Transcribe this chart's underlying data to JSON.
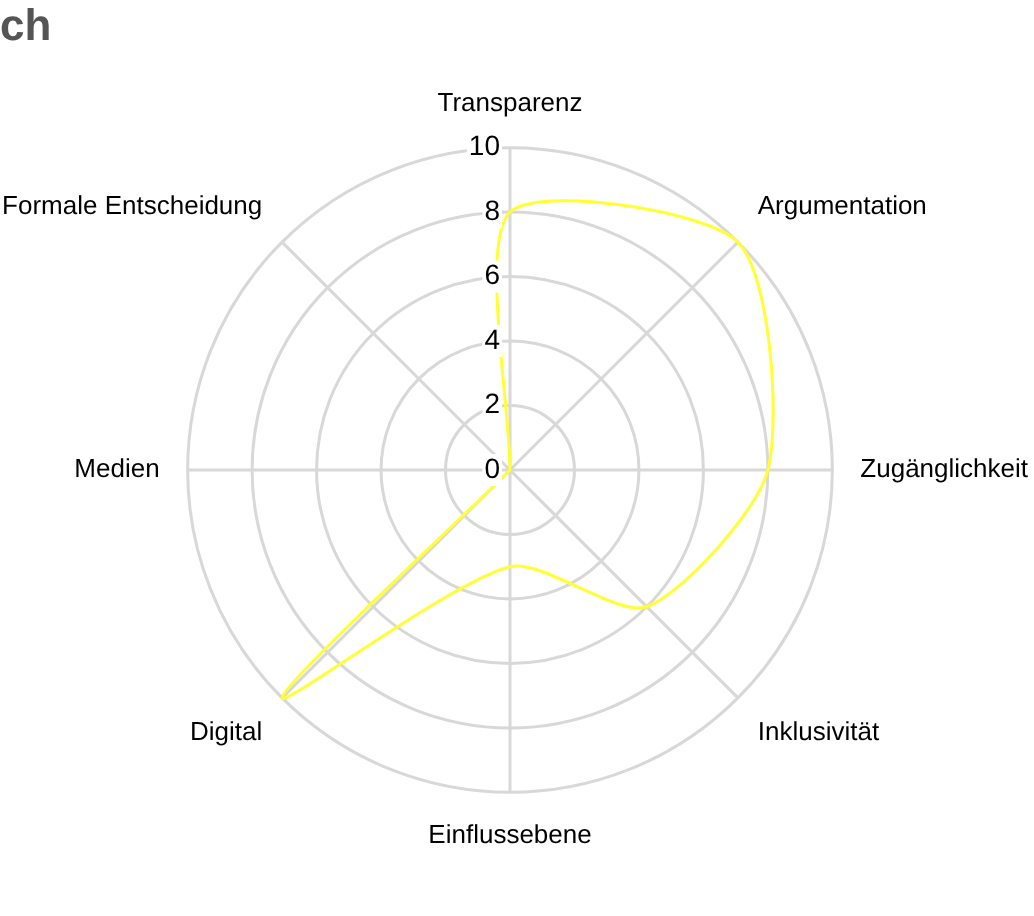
{
  "chart_data": {
    "type": "radar",
    "title": "ch",
    "categories": [
      "Transparenz",
      "Argumentation",
      "Zugänglichkeit",
      "Inklusivität",
      "Einflussebene",
      "Digital",
      "Medien",
      "Formale Entscheidung"
    ],
    "series": [
      {
        "color": "#ffff33",
        "values": [
          8,
          10,
          8,
          6,
          3,
          10,
          0,
          0
        ]
      }
    ],
    "ylim": [
      0,
      10
    ],
    "yticks": [
      0,
      2,
      4,
      6,
      8,
      10
    ],
    "grid": true,
    "legend": false,
    "marker": "none"
  }
}
